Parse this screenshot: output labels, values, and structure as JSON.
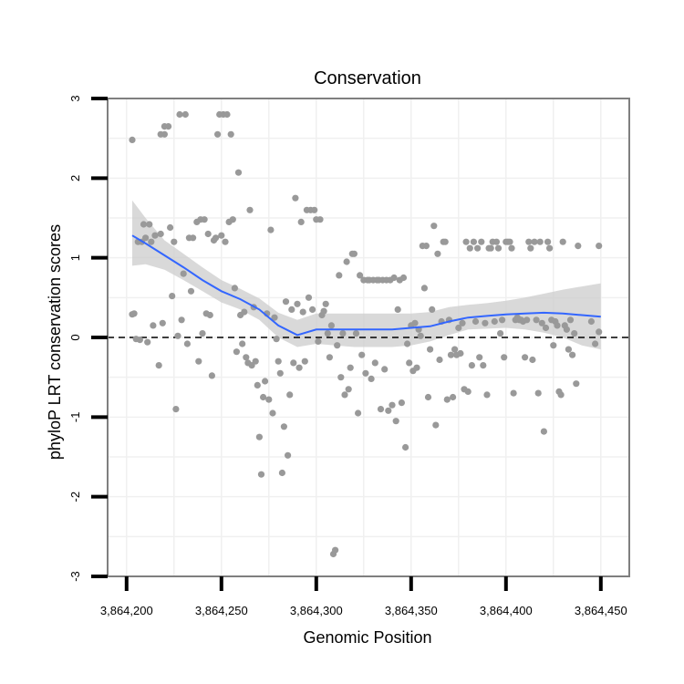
{
  "chart_data": {
    "type": "scatter",
    "title": "Conservation",
    "xlabel": "Genomic Position",
    "ylabel": "phyloP LRT conservation scores",
    "xlim": [
      3864190,
      3864465
    ],
    "ylim": [
      -3,
      3
    ],
    "x_ticks": [
      3864200,
      3864250,
      3864300,
      3864350,
      3864400,
      3864450
    ],
    "x_tick_labels": [
      "3,864,200",
      "3,864,250",
      "3,864,300",
      "3,864,350",
      "3,864,400",
      "3,864,450"
    ],
    "y_ticks": [
      -3,
      -2,
      -1,
      0,
      1,
      2,
      3
    ],
    "y_tick_labels": [
      "-3",
      "-2",
      "-1",
      "0",
      "1",
      "2",
      "3"
    ],
    "reference_line": {
      "y": 0,
      "style": "dashed"
    },
    "colors": {
      "points": "#999999",
      "smooth_line": "#3366ff",
      "confidence_band": "#cccccc",
      "frame": "#7f7f7f",
      "grid": "#f0f0f0"
    },
    "series": [
      {
        "name": "phyloP score",
        "style": "points",
        "points": [
          [
            3864203,
            2.48
          ],
          [
            3864203,
            0.29
          ],
          [
            3864204,
            0.3
          ],
          [
            3864205,
            -0.02
          ],
          [
            3864206,
            1.2
          ],
          [
            3864207,
            -0.03
          ],
          [
            3864208,
            1.2
          ],
          [
            3864209,
            1.42
          ],
          [
            3864210,
            1.25
          ],
          [
            3864211,
            -0.06
          ],
          [
            3864212,
            1.42
          ],
          [
            3864213,
            1.2
          ],
          [
            3864214,
            0.15
          ],
          [
            3864215,
            1.28
          ],
          [
            3864217,
            -0.35
          ],
          [
            3864218,
            1.3
          ],
          [
            3864219,
            0.18
          ],
          [
            3864218,
            2.55
          ],
          [
            3864220,
            2.65
          ],
          [
            3864220,
            2.55
          ],
          [
            3864222,
            2.65
          ],
          [
            3864223,
            1.38
          ],
          [
            3864224,
            0.52
          ],
          [
            3864225,
            1.2
          ],
          [
            3864226,
            -0.9
          ],
          [
            3864227,
            0.02
          ],
          [
            3864228,
            2.8
          ],
          [
            3864229,
            0.22
          ],
          [
            3864230,
            0.8
          ],
          [
            3864231,
            2.8
          ],
          [
            3864232,
            -0.08
          ],
          [
            3864233,
            1.25
          ],
          [
            3864234,
            0.58
          ],
          [
            3864235,
            1.25
          ],
          [
            3864237,
            1.45
          ],
          [
            3864238,
            -0.3
          ],
          [
            3864239,
            1.48
          ],
          [
            3864240,
            0.05
          ],
          [
            3864241,
            1.48
          ],
          [
            3864242,
            0.3
          ],
          [
            3864243,
            1.3
          ],
          [
            3864244,
            0.28
          ],
          [
            3864245,
            -0.48
          ],
          [
            3864246,
            1.22
          ],
          [
            3864247,
            1.25
          ],
          [
            3864248,
            2.55
          ],
          [
            3864249,
            2.8
          ],
          [
            3864250,
            1.28
          ],
          [
            3864251,
            2.8
          ],
          [
            3864252,
            1.2
          ],
          [
            3864253,
            2.8
          ],
          [
            3864254,
            1.45
          ],
          [
            3864255,
            2.55
          ],
          [
            3864256,
            1.48
          ],
          [
            3864257,
            0.62
          ],
          [
            3864258,
            -0.18
          ],
          [
            3864259,
            2.07
          ],
          [
            3864260,
            0.28
          ],
          [
            3864261,
            -0.08
          ],
          [
            3864262,
            0.32
          ],
          [
            3864263,
            -0.25
          ],
          [
            3864264,
            -0.32
          ],
          [
            3864265,
            1.6
          ],
          [
            3864266,
            -0.35
          ],
          [
            3864267,
            0.38
          ],
          [
            3864268,
            -0.3
          ],
          [
            3864269,
            -0.6
          ],
          [
            3864270,
            -1.25
          ],
          [
            3864271,
            -1.72
          ],
          [
            3864272,
            -0.75
          ],
          [
            3864273,
            -0.55
          ],
          [
            3864274,
            0.3
          ],
          [
            3864275,
            -0.78
          ],
          [
            3864276,
            1.35
          ],
          [
            3864277,
            -0.95
          ],
          [
            3864278,
            0.25
          ],
          [
            3864279,
            -0.02
          ],
          [
            3864280,
            -0.3
          ],
          [
            3864281,
            -0.45
          ],
          [
            3864282,
            -1.7
          ],
          [
            3864283,
            -1.12
          ],
          [
            3864284,
            0.45
          ],
          [
            3864285,
            -1.48
          ],
          [
            3864286,
            -0.72
          ],
          [
            3864287,
            0.35
          ],
          [
            3864288,
            -0.32
          ],
          [
            3864289,
            1.75
          ],
          [
            3864290,
            0.42
          ],
          [
            3864291,
            -0.38
          ],
          [
            3864292,
            1.45
          ],
          [
            3864293,
            0.32
          ],
          [
            3864294,
            -0.3
          ],
          [
            3864295,
            1.6
          ],
          [
            3864296,
            0.5
          ],
          [
            3864297,
            1.6
          ],
          [
            3864298,
            0.35
          ],
          [
            3864299,
            1.6
          ],
          [
            3864300,
            1.48
          ],
          [
            3864301,
            -0.05
          ],
          [
            3864302,
            1.48
          ],
          [
            3864303,
            0.28
          ],
          [
            3864304,
            0.33
          ],
          [
            3864305,
            0.42
          ],
          [
            3864306,
            0.05
          ],
          [
            3864307,
            -0.25
          ],
          [
            3864308,
            0.15
          ],
          [
            3864309,
            -2.72
          ],
          [
            3864310,
            -2.67
          ],
          [
            3864311,
            -0.1
          ],
          [
            3864312,
            0.78
          ],
          [
            3864313,
            -0.5
          ],
          [
            3864314,
            0.05
          ],
          [
            3864315,
            -0.72
          ],
          [
            3864316,
            0.95
          ],
          [
            3864317,
            -0.65
          ],
          [
            3864318,
            -0.38
          ],
          [
            3864319,
            1.05
          ],
          [
            3864320,
            1.05
          ],
          [
            3864321,
            0.05
          ],
          [
            3864322,
            -0.95
          ],
          [
            3864323,
            0.78
          ],
          [
            3864324,
            -0.22
          ],
          [
            3864325,
            0.72
          ],
          [
            3864326,
            -0.45
          ],
          [
            3864327,
            0.72
          ],
          [
            3864328,
            0.72
          ],
          [
            3864329,
            -0.52
          ],
          [
            3864330,
            0.72
          ],
          [
            3864331,
            -0.32
          ],
          [
            3864332,
            0.72
          ],
          [
            3864333,
            0.72
          ],
          [
            3864334,
            -0.9
          ],
          [
            3864335,
            0.72
          ],
          [
            3864336,
            -0.4
          ],
          [
            3864337,
            0.72
          ],
          [
            3864338,
            -0.92
          ],
          [
            3864339,
            0.72
          ],
          [
            3864340,
            -0.85
          ],
          [
            3864341,
            0.75
          ],
          [
            3864342,
            -1.05
          ],
          [
            3864343,
            0.35
          ],
          [
            3864344,
            0.72
          ],
          [
            3864345,
            -0.82
          ],
          [
            3864346,
            0.75
          ],
          [
            3864347,
            -1.38
          ],
          [
            3864348,
            -0.08
          ],
          [
            3864349,
            -0.32
          ],
          [
            3864350,
            0.15
          ],
          [
            3864351,
            -0.42
          ],
          [
            3864352,
            0.18
          ],
          [
            3864353,
            -0.38
          ],
          [
            3864354,
            0.1
          ],
          [
            3864355,
            0.02
          ],
          [
            3864356,
            1.15
          ],
          [
            3864357,
            0.62
          ],
          [
            3864358,
            1.15
          ],
          [
            3864359,
            -0.75
          ],
          [
            3864360,
            -0.15
          ],
          [
            3864361,
            0.35
          ],
          [
            3864362,
            1.4
          ],
          [
            3864363,
            -1.1
          ],
          [
            3864364,
            1.05
          ],
          [
            3864365,
            -0.28
          ],
          [
            3864366,
            0.2
          ],
          [
            3864367,
            1.2
          ],
          [
            3864368,
            1.2
          ],
          [
            3864369,
            -0.78
          ],
          [
            3864370,
            0.22
          ],
          [
            3864371,
            -0.22
          ],
          [
            3864372,
            -0.75
          ],
          [
            3864373,
            -0.15
          ],
          [
            3864374,
            -0.22
          ],
          [
            3864375,
            0.12
          ],
          [
            3864376,
            -0.2
          ],
          [
            3864377,
            0.18
          ],
          [
            3864378,
            -0.65
          ],
          [
            3864379,
            1.2
          ],
          [
            3864380,
            -0.68
          ],
          [
            3864381,
            1.12
          ],
          [
            3864382,
            -0.35
          ],
          [
            3864383,
            1.2
          ],
          [
            3864384,
            0.2
          ],
          [
            3864385,
            1.12
          ],
          [
            3864386,
            -0.25
          ],
          [
            3864387,
            1.2
          ],
          [
            3864388,
            -0.35
          ],
          [
            3864389,
            0.18
          ],
          [
            3864390,
            -0.72
          ],
          [
            3864391,
            1.12
          ],
          [
            3864392,
            1.12
          ],
          [
            3864393,
            1.2
          ],
          [
            3864394,
            0.2
          ],
          [
            3864395,
            1.2
          ],
          [
            3864396,
            1.12
          ],
          [
            3864397,
            0.05
          ],
          [
            3864398,
            0.22
          ],
          [
            3864399,
            -0.25
          ],
          [
            3864400,
            1.2
          ],
          [
            3864401,
            1.2
          ],
          [
            3864402,
            1.2
          ],
          [
            3864403,
            1.12
          ],
          [
            3864404,
            -0.7
          ],
          [
            3864405,
            0.22
          ],
          [
            3864406,
            0.25
          ],
          [
            3864407,
            0.22
          ],
          [
            3864408,
            0.22
          ],
          [
            3864409,
            0.2
          ],
          [
            3864410,
            -0.25
          ],
          [
            3864411,
            0.22
          ],
          [
            3864412,
            1.2
          ],
          [
            3864413,
            1.12
          ],
          [
            3864414,
            -0.28
          ],
          [
            3864415,
            1.2
          ],
          [
            3864416,
            0.22
          ],
          [
            3864417,
            -0.7
          ],
          [
            3864418,
            1.2
          ],
          [
            3864419,
            0.18
          ],
          [
            3864420,
            -1.18
          ],
          [
            3864421,
            0.12
          ],
          [
            3864422,
            1.2
          ],
          [
            3864423,
            1.12
          ],
          [
            3864424,
            0.22
          ],
          [
            3864425,
            -0.1
          ],
          [
            3864426,
            0.2
          ],
          [
            3864427,
            0.15
          ],
          [
            3864428,
            -0.68
          ],
          [
            3864429,
            -0.72
          ],
          [
            3864430,
            1.2
          ],
          [
            3864431,
            0.15
          ],
          [
            3864432,
            0.1
          ],
          [
            3864433,
            -0.15
          ],
          [
            3864434,
            0.22
          ],
          [
            3864435,
            -0.22
          ],
          [
            3864436,
            0.05
          ],
          [
            3864437,
            -0.58
          ],
          [
            3864438,
            1.15
          ],
          [
            3864445,
            0.2
          ],
          [
            3864447,
            -0.08
          ],
          [
            3864449,
            1.15
          ],
          [
            3864449,
            0.07
          ]
        ]
      },
      {
        "name": "smoothed trend",
        "style": "line",
        "x": [
          3864203,
          3864210,
          3864220,
          3864230,
          3864240,
          3864250,
          3864260,
          3864270,
          3864280,
          3864290,
          3864300,
          3864310,
          3864320,
          3864330,
          3864340,
          3864350,
          3864360,
          3864370,
          3864380,
          3864390,
          3864400,
          3864410,
          3864420,
          3864430,
          3864440,
          3864450
        ],
        "y": [
          1.28,
          1.18,
          1.03,
          0.88,
          0.72,
          0.58,
          0.48,
          0.35,
          0.15,
          0.03,
          0.1,
          0.1,
          0.1,
          0.1,
          0.1,
          0.12,
          0.14,
          0.2,
          0.25,
          0.27,
          0.29,
          0.3,
          0.31,
          0.3,
          0.28,
          0.26
        ]
      },
      {
        "name": "confidence band",
        "style": "ribbon",
        "x": [
          3864203,
          3864210,
          3864220,
          3864230,
          3864240,
          3864250,
          3864260,
          3864270,
          3864280,
          3864290,
          3864300,
          3864310,
          3864320,
          3864330,
          3864340,
          3864350,
          3864360,
          3864370,
          3864380,
          3864390,
          3864400,
          3864410,
          3864420,
          3864430,
          3864440,
          3864450
        ],
        "lower": [
          0.9,
          0.92,
          0.85,
          0.72,
          0.58,
          0.44,
          0.35,
          0.22,
          0.0,
          -0.12,
          -0.08,
          -0.1,
          -0.12,
          -0.12,
          -0.12,
          -0.1,
          -0.05,
          0.03,
          0.1,
          0.11,
          0.12,
          0.1,
          0.06,
          0.0,
          -0.1,
          -0.15
        ],
        "upper": [
          1.72,
          1.5,
          1.22,
          1.05,
          0.88,
          0.72,
          0.61,
          0.49,
          0.31,
          0.22,
          0.3,
          0.3,
          0.3,
          0.3,
          0.3,
          0.3,
          0.32,
          0.38,
          0.41,
          0.43,
          0.46,
          0.5,
          0.55,
          0.6,
          0.64,
          0.68
        ]
      }
    ]
  }
}
